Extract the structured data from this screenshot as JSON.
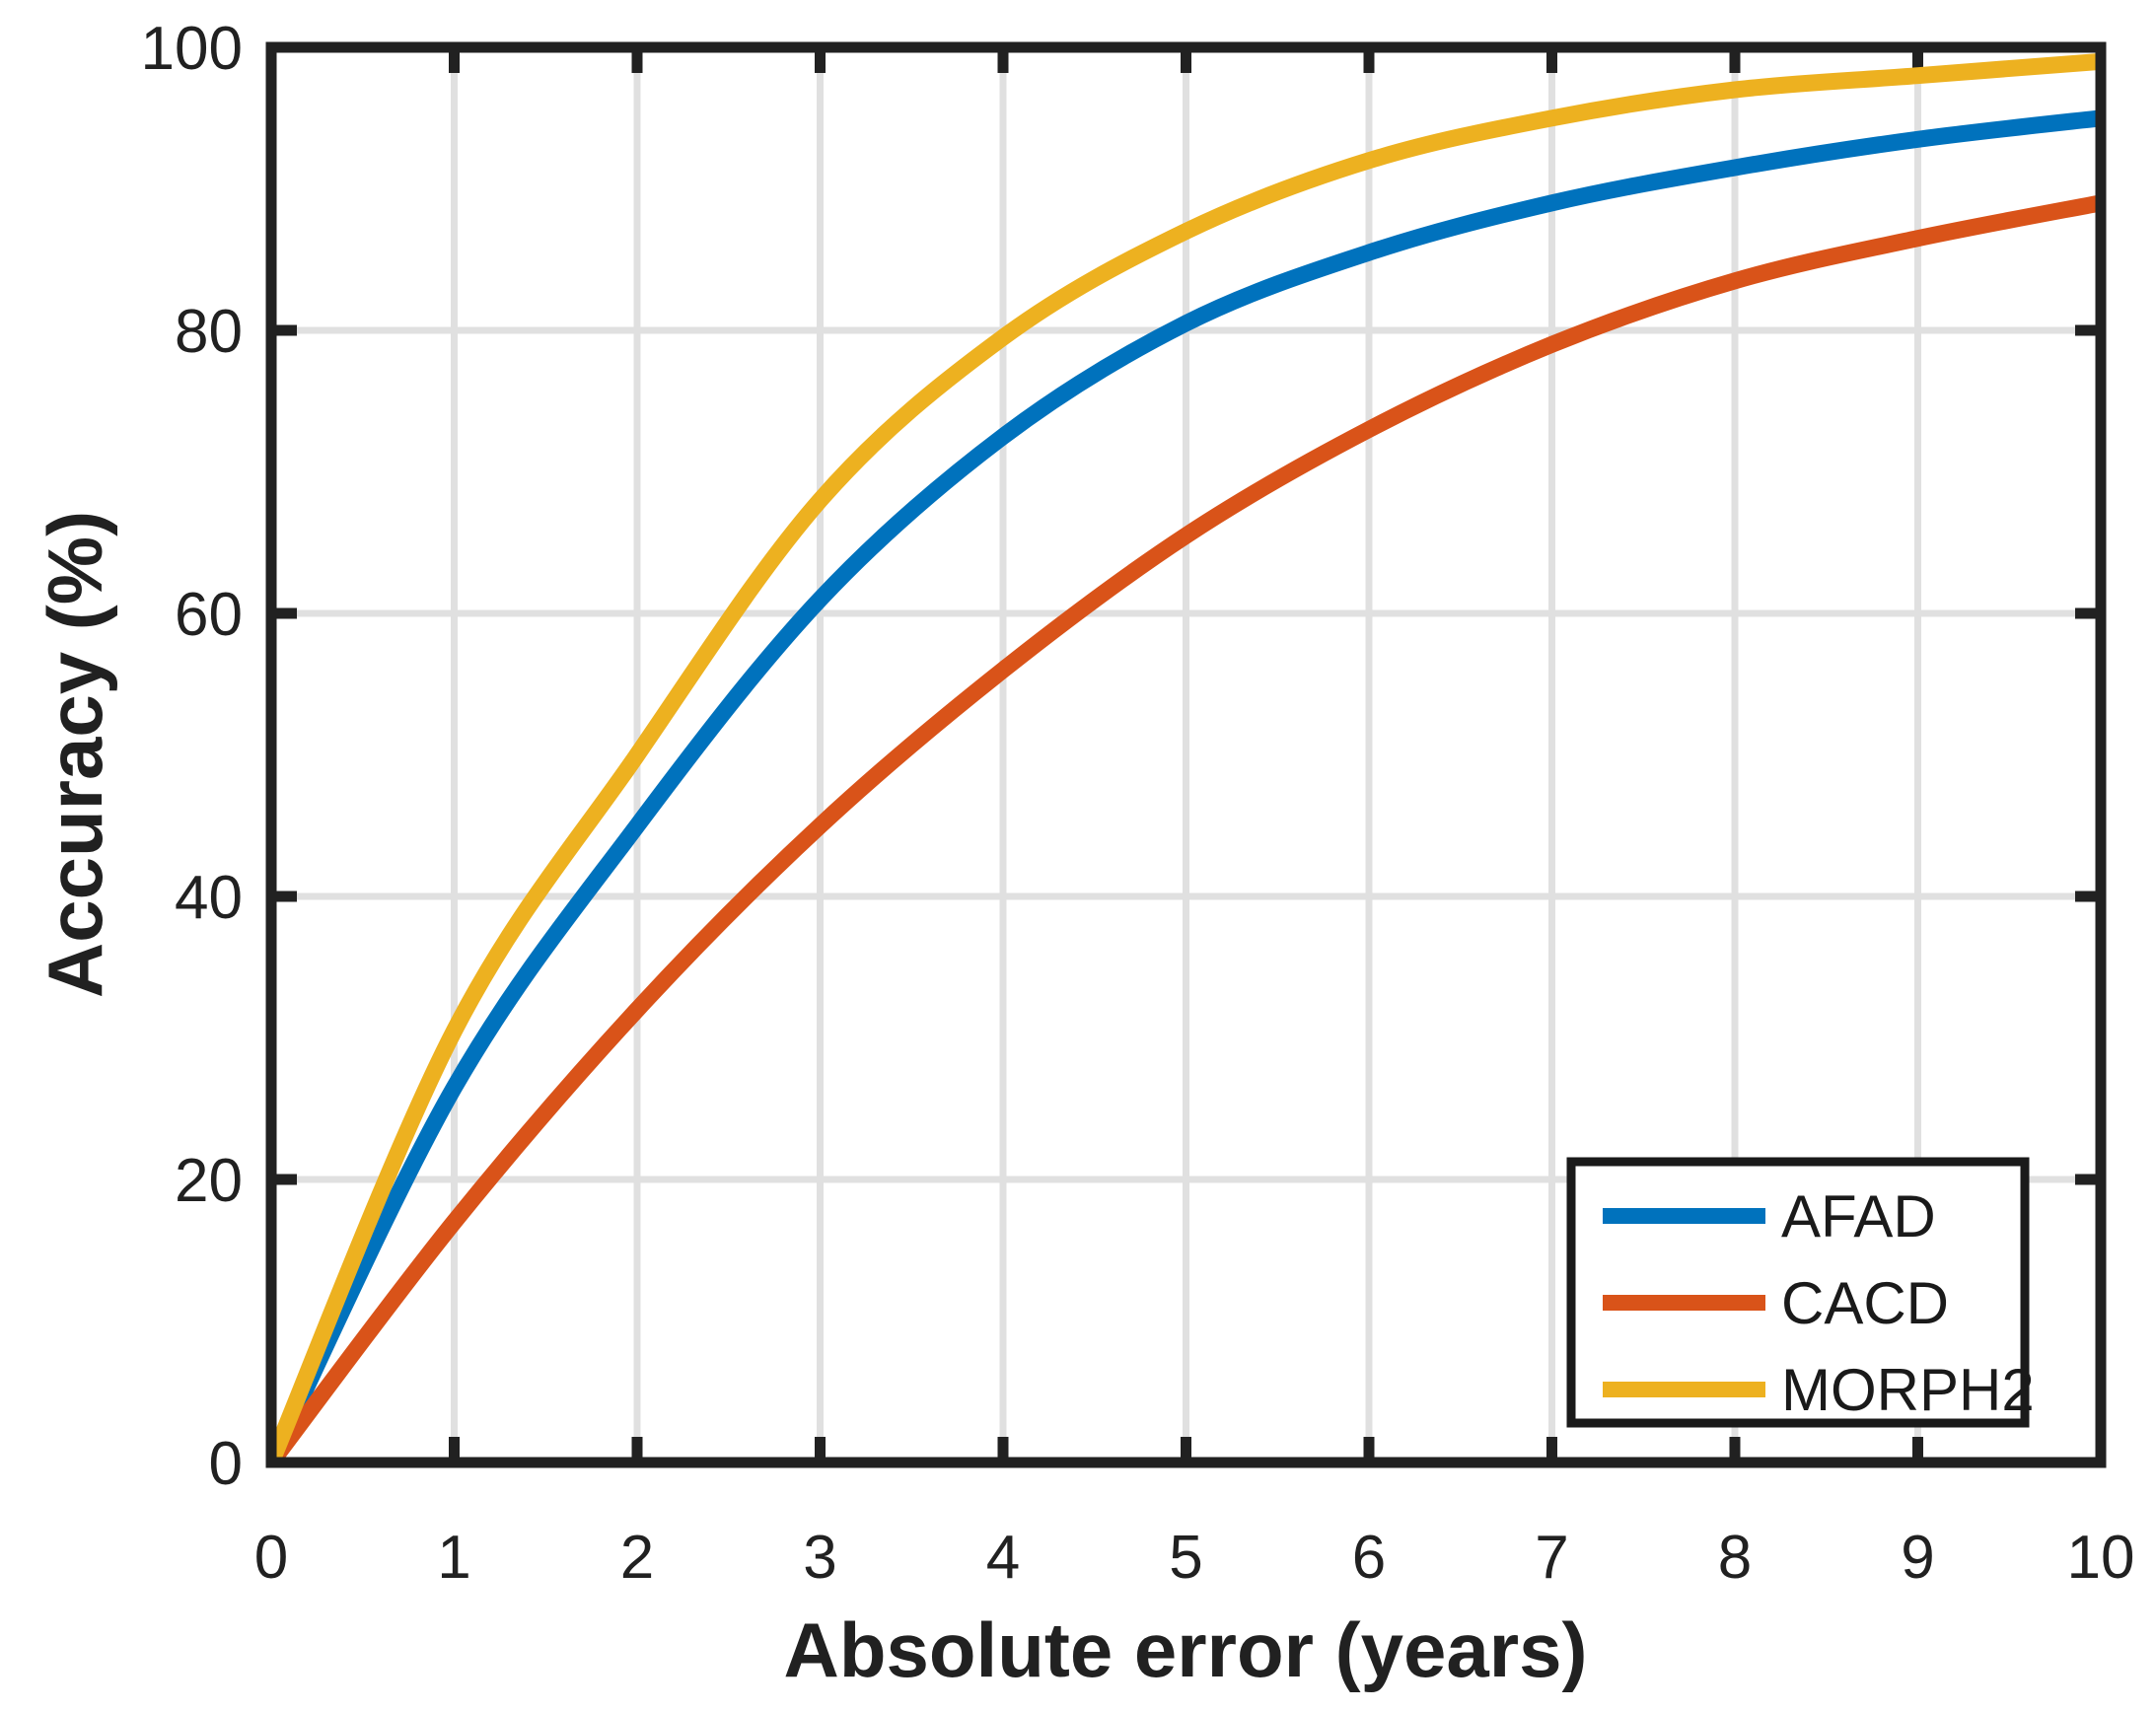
{
  "figure": {
    "xlabel": "Absolute error (years)",
    "ylabel": "Accuracy (%)"
  },
  "chart_data": {
    "type": "line",
    "x": [
      0,
      1,
      2,
      3,
      4,
      5,
      6,
      7,
      8,
      9,
      10
    ],
    "series": [
      {
        "name": "AFAD",
        "color": "#0072BD",
        "values": [
          0,
          26.5,
          45,
          61,
          72.5,
          80.5,
          85.5,
          89,
          91.5,
          93.5,
          95
        ]
      },
      {
        "name": "CACD",
        "color": "#D95319",
        "values": [
          0,
          17,
          32,
          45,
          56,
          65.5,
          73,
          79,
          83.5,
          86.5,
          89
        ]
      },
      {
        "name": "MORPH2",
        "color": "#EDB120",
        "values": [
          0,
          30.5,
          50,
          68,
          79.5,
          87,
          92,
          95,
          97,
          98,
          99
        ]
      }
    ],
    "title": "",
    "xlabel": "Absolute error (years)",
    "ylabel": "Accuracy (%)",
    "xlim": [
      0,
      10
    ],
    "ylim": [
      0,
      100
    ],
    "xticks": [
      0,
      1,
      2,
      3,
      4,
      5,
      6,
      7,
      8,
      9,
      10
    ],
    "yticks": [
      0,
      20,
      40,
      60,
      80,
      100
    ],
    "grid": true,
    "legend_position": "lower right",
    "colors": {
      "grid": "#E0E0E0",
      "axis": "#212121",
      "background": "#FFFFFF"
    }
  }
}
